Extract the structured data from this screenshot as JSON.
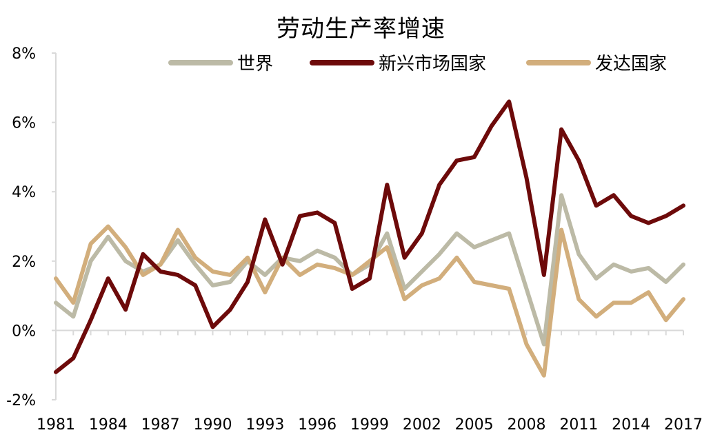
{
  "chart_data": {
    "type": "line",
    "title": "劳动生产率增速",
    "xlabel": "",
    "ylabel": "",
    "ylim": [
      -2,
      8
    ],
    "yticks": [
      -2,
      0,
      2,
      4,
      6,
      8
    ],
    "ytick_labels": [
      "-2%",
      "0%",
      "2%",
      "4%",
      "6%",
      "8%"
    ],
    "x": [
      1981,
      1982,
      1983,
      1984,
      1985,
      1986,
      1987,
      1988,
      1989,
      1990,
      1991,
      1992,
      1993,
      1994,
      1995,
      1996,
      1997,
      1998,
      1999,
      2000,
      2001,
      2002,
      2003,
      2004,
      2005,
      2006,
      2007,
      2008,
      2009,
      2010,
      2011,
      2012,
      2013,
      2014,
      2015,
      2016,
      2017
    ],
    "xtick_labels": [
      "1981",
      "1984",
      "1987",
      "1990",
      "1993",
      "1996",
      "1999",
      "2002",
      "2005",
      "2008",
      "2011",
      "2014",
      "2017"
    ],
    "grid": false,
    "legend_position": "top",
    "series": [
      {
        "name": "世界",
        "color": "#bcbaa6",
        "values": [
          0.8,
          0.4,
          2.0,
          2.7,
          2.0,
          1.7,
          1.9,
          2.6,
          1.9,
          1.3,
          1.4,
          2.0,
          1.6,
          2.1,
          2.0,
          2.3,
          2.1,
          1.6,
          1.9,
          2.8,
          1.2,
          1.7,
          2.2,
          2.8,
          2.4,
          2.6,
          2.8,
          1.2,
          -0.4,
          3.9,
          2.2,
          1.5,
          1.9,
          1.7,
          1.8,
          1.4,
          1.9
        ]
      },
      {
        "name": "新兴市场国家",
        "color": "#6d0a0a",
        "values": [
          -1.2,
          -0.8,
          0.3,
          1.5,
          0.6,
          2.2,
          1.7,
          1.6,
          1.3,
          0.1,
          0.6,
          1.4,
          3.2,
          1.9,
          3.3,
          3.4,
          3.1,
          1.2,
          1.5,
          4.2,
          2.1,
          2.8,
          4.2,
          4.9,
          5.0,
          5.9,
          6.6,
          4.4,
          1.6,
          5.8,
          4.9,
          3.6,
          3.9,
          3.3,
          3.1,
          3.3,
          3.6
        ]
      },
      {
        "name": "发达国家",
        "color": "#d2ae7c",
        "values": [
          1.5,
          0.8,
          2.5,
          3.0,
          2.4,
          1.6,
          1.9,
          2.9,
          2.1,
          1.7,
          1.6,
          2.1,
          1.1,
          2.1,
          1.6,
          1.9,
          1.8,
          1.6,
          2.0,
          2.4,
          0.9,
          1.3,
          1.5,
          2.1,
          1.4,
          1.3,
          1.2,
          -0.4,
          -1.3,
          2.9,
          0.9,
          0.4,
          0.8,
          0.8,
          1.1,
          0.3,
          0.9
        ]
      }
    ]
  }
}
